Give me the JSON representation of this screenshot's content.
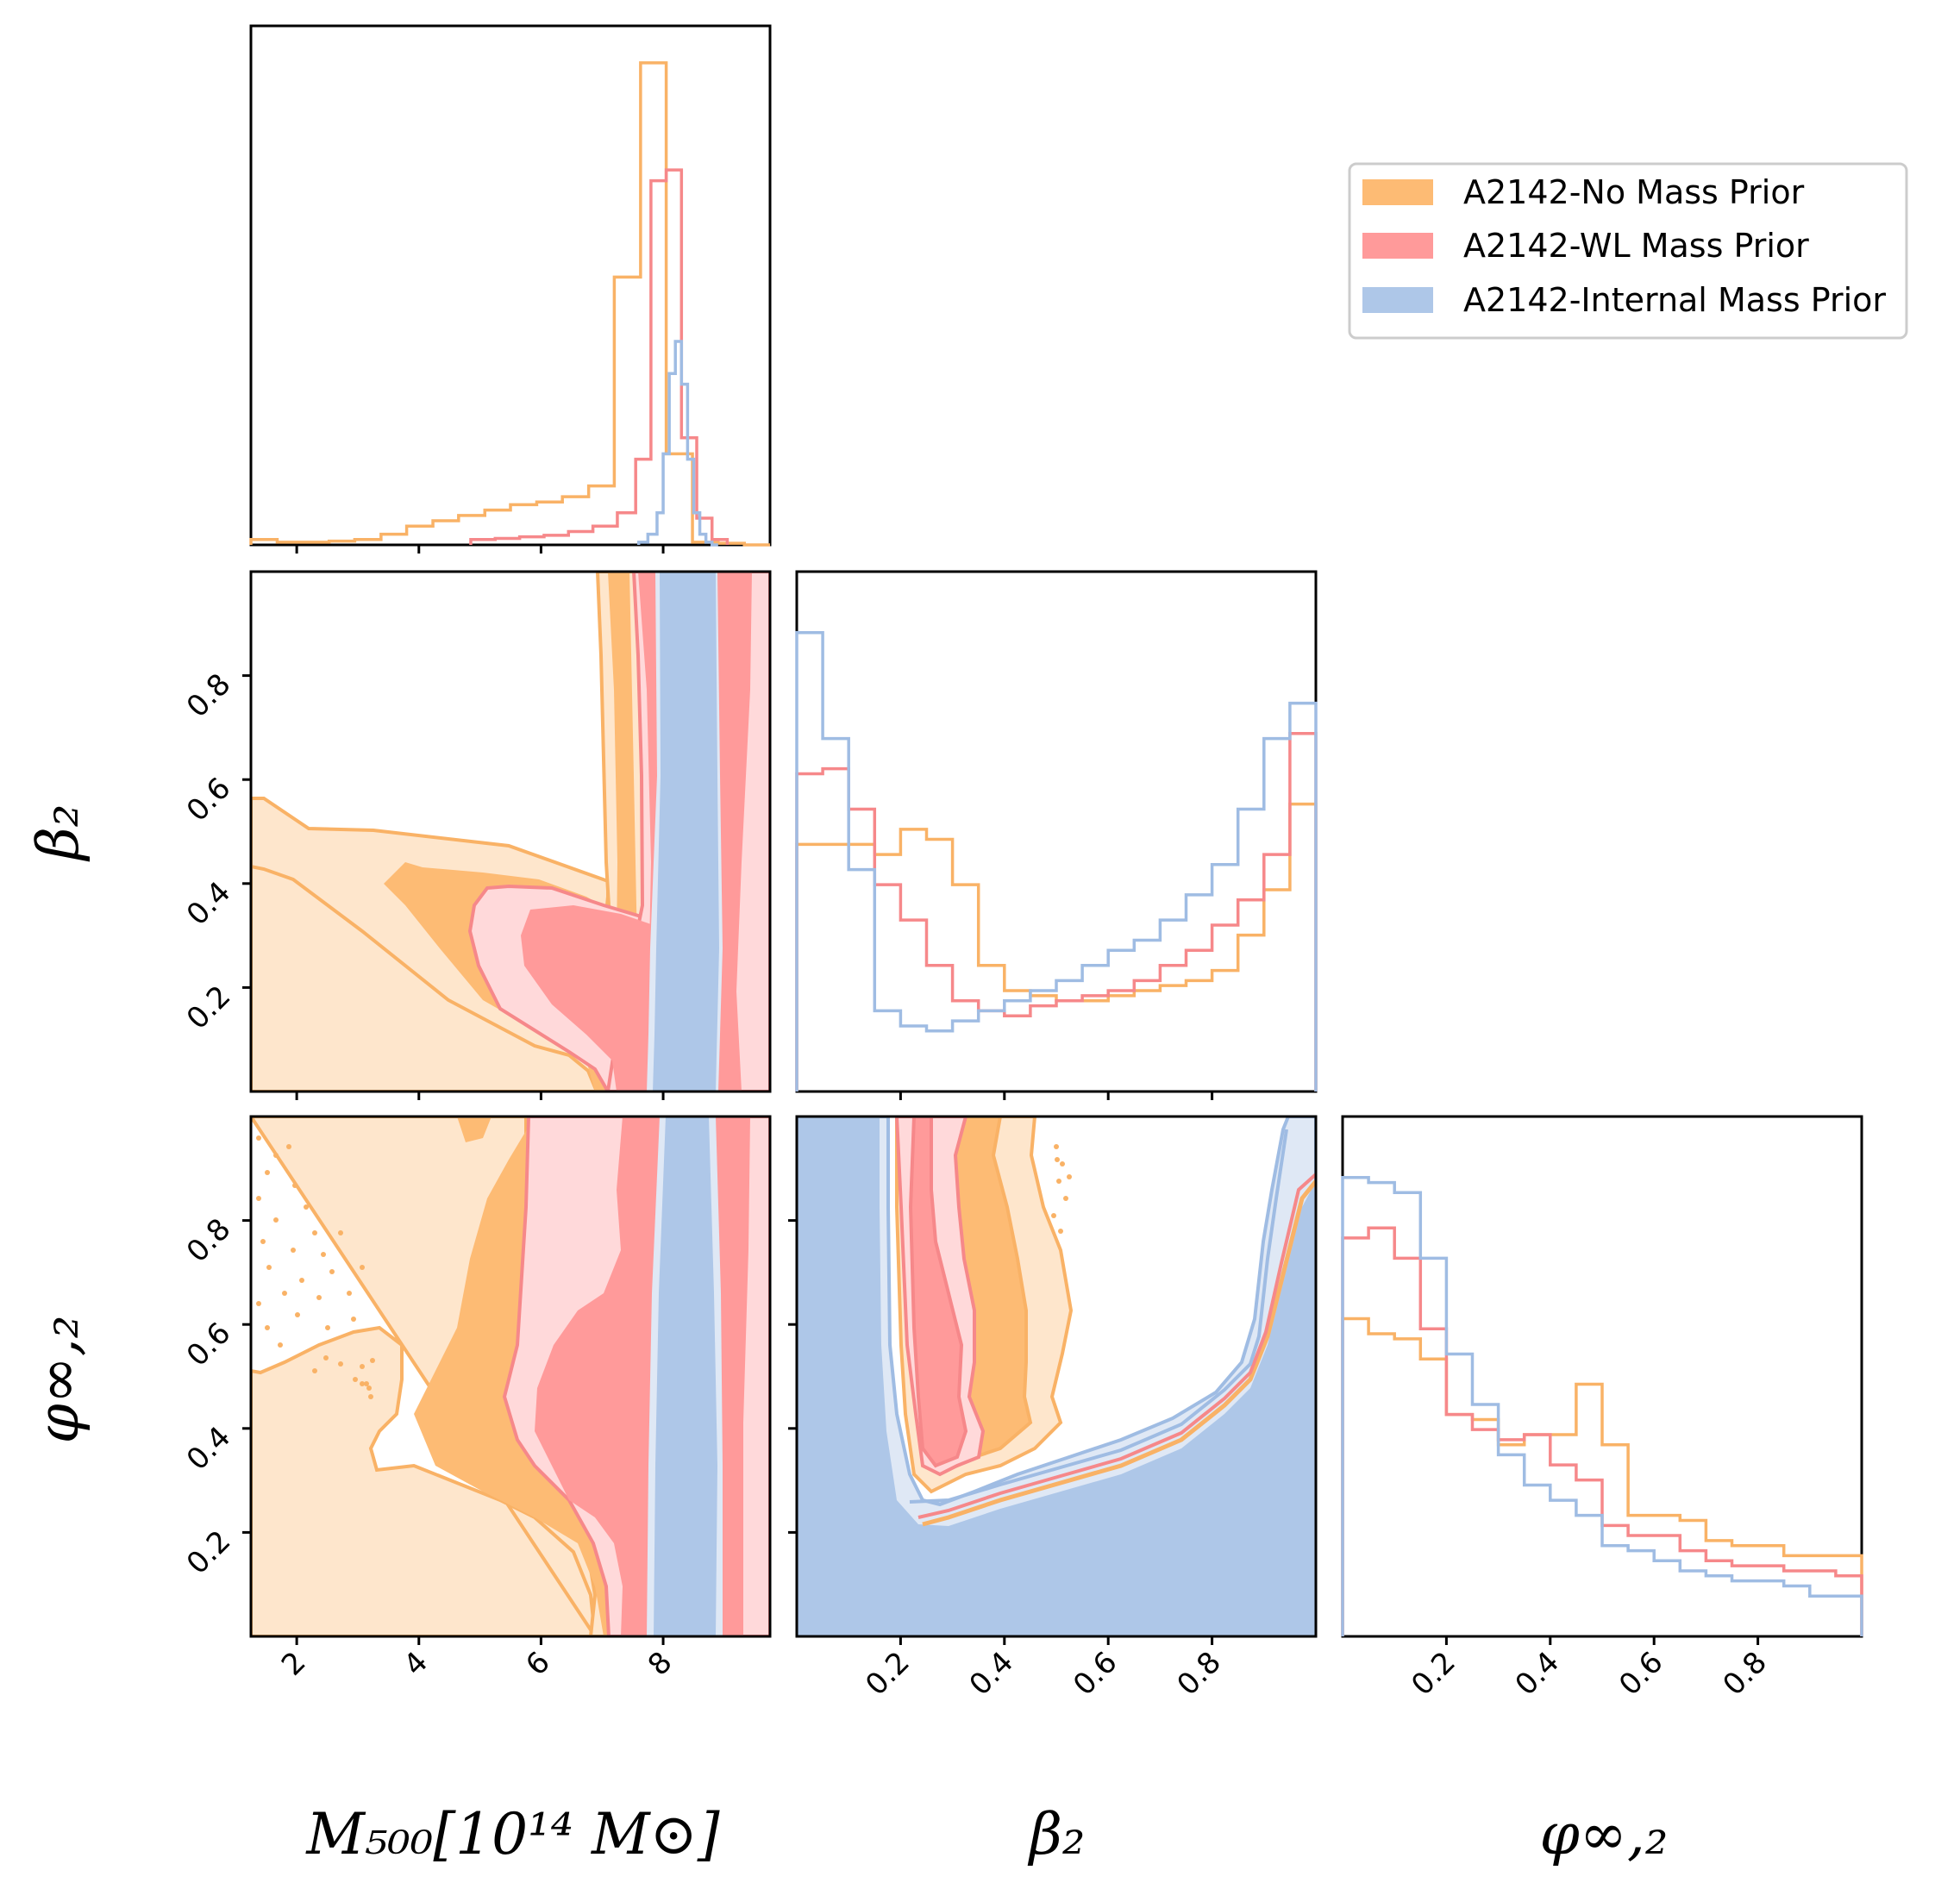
{
  "colors": {
    "no_mass": "#fdbb74",
    "no_mass_light": "#fee6cc",
    "no_mass_line": "#f9b266",
    "wl_mass": "#ff9a9a",
    "wl_mass_light": "#ffd9da",
    "wl_mass_line": "#f6888a",
    "internal_mass": "#aec7e8",
    "internal_mass_light": "#dfe8f5",
    "internal_mass_line": "#9fbce3"
  },
  "axis_titles": {
    "m500": "M₅₀₀[10¹⁴ M⊙]",
    "beta2": "β₂",
    "phi2": "φ∞,₂"
  },
  "legend": [
    {
      "label": "A2142-No Mass Prior",
      "color": "#fdbb74"
    },
    {
      "label": "A2142-WL Mass Prior",
      "color": "#ff9a9a"
    },
    {
      "label": "A2142-Internal Mass Prior",
      "color": "#aec7e8"
    }
  ],
  "chart_data": {
    "type": "corner",
    "parameters": [
      "M500",
      "beta2",
      "phi_inf2"
    ],
    "ranges": {
      "M500": [
        1.25,
        9.75
      ],
      "beta2": [
        0.0,
        1.0
      ],
      "phi_inf2": [
        0.0,
        1.0
      ]
    },
    "ticks": {
      "M500": [
        2,
        4,
        6,
        8
      ],
      "beta2": [
        0.2,
        0.4,
        0.6,
        0.8
      ],
      "phi_inf2": [
        0.2,
        0.4,
        0.6,
        0.8
      ]
    },
    "tick_labels": {
      "M500": [
        "2",
        "4",
        "6",
        "8"
      ],
      "beta2": [
        "0.2",
        "0.4",
        "0.6",
        "0.8"
      ],
      "phi_inf2": [
        "0.2",
        "0.4",
        "0.6",
        "0.8"
      ]
    },
    "hist_M500": {
      "series": [
        {
          "name": "A2142-No Mass Prior",
          "edges": [
            1.25,
            1.68,
            2.1,
            2.53,
            2.95,
            3.38,
            3.8,
            4.23,
            4.65,
            5.08,
            5.5,
            5.93,
            6.35,
            6.78,
            7.2,
            7.63,
            8.05,
            8.48,
            8.9,
            9.33,
            9.75
          ],
          "values": [
            0.01,
            0.005,
            0.005,
            0.007,
            0.01,
            0.02,
            0.035,
            0.045,
            0.055,
            0.065,
            0.075,
            0.08,
            0.09,
            0.11,
            0.5,
            0.9,
            0.17,
            0.005,
            0.003,
            0.0
          ]
        },
        {
          "name": "A2142-WL Mass Prior",
          "edges": [
            4.85,
            5.25,
            5.65,
            6.05,
            6.45,
            6.85,
            7.25,
            7.55,
            7.8,
            8.05,
            8.3,
            8.55,
            8.8,
            9.05
          ],
          "values": [
            0.01,
            0.012,
            0.015,
            0.018,
            0.025,
            0.035,
            0.06,
            0.16,
            0.68,
            0.7,
            0.2,
            0.05,
            0.01
          ]
        },
        {
          "name": "A2142-Internal Mass Prior",
          "edges": [
            7.6,
            7.75,
            7.9,
            8.0,
            8.1,
            8.2,
            8.3,
            8.4,
            8.5,
            8.6,
            8.7,
            8.8,
            8.9
          ],
          "values": [
            0.005,
            0.02,
            0.06,
            0.17,
            0.32,
            0.38,
            0.3,
            0.16,
            0.06,
            0.02,
            0.005,
            0.0
          ]
        }
      ]
    },
    "hist_beta2": {
      "edges": [
        0.0,
        0.05,
        0.1,
        0.15,
        0.2,
        0.25,
        0.3,
        0.35,
        0.4,
        0.45,
        0.5,
        0.55,
        0.6,
        0.65,
        0.7,
        0.75,
        0.8,
        0.85,
        0.9,
        0.95,
        1.0
      ],
      "series": [
        {
          "name": "A2142-No Mass Prior",
          "values": [
            0.49,
            0.49,
            0.49,
            0.47,
            0.52,
            0.5,
            0.41,
            0.25,
            0.2,
            0.19,
            0.18,
            0.18,
            0.19,
            0.2,
            0.21,
            0.22,
            0.24,
            0.31,
            0.4,
            0.57
          ]
        },
        {
          "name": "A2142-WL Mass Prior",
          "values": [
            0.63,
            0.64,
            0.56,
            0.41,
            0.34,
            0.25,
            0.18,
            0.16,
            0.15,
            0.17,
            0.18,
            0.19,
            0.2,
            0.22,
            0.25,
            0.28,
            0.33,
            0.38,
            0.47,
            0.71
          ]
        },
        {
          "name": "A2142-Internal Mass Prior",
          "values": [
            0.91,
            0.7,
            0.44,
            0.16,
            0.13,
            0.12,
            0.14,
            0.16,
            0.18,
            0.2,
            0.22,
            0.25,
            0.28,
            0.3,
            0.34,
            0.39,
            0.45,
            0.56,
            0.7,
            0.77
          ]
        }
      ]
    },
    "hist_phi2": {
      "edges": [
        0.0,
        0.05,
        0.1,
        0.15,
        0.2,
        0.25,
        0.3,
        0.35,
        0.4,
        0.45,
        0.5,
        0.55,
        0.6,
        0.65,
        0.7,
        0.75,
        0.8,
        0.85,
        0.9,
        0.95,
        1.0
      ],
      "series": [
        {
          "name": "A2142-No Mass Prior",
          "values": [
            0.63,
            0.6,
            0.59,
            0.55,
            0.44,
            0.43,
            0.38,
            0.4,
            0.4,
            0.5,
            0.38,
            0.24,
            0.24,
            0.23,
            0.19,
            0.18,
            0.18,
            0.16,
            0.16,
            0.16
          ]
        },
        {
          "name": "A2142-WL Mass Prior",
          "values": [
            0.79,
            0.81,
            0.75,
            0.61,
            0.44,
            0.41,
            0.39,
            0.4,
            0.34,
            0.31,
            0.22,
            0.2,
            0.2,
            0.17,
            0.15,
            0.14,
            0.14,
            0.13,
            0.13,
            0.12
          ]
        },
        {
          "name": "A2142-Internal Mass Prior",
          "values": [
            0.91,
            0.9,
            0.88,
            0.75,
            0.56,
            0.46,
            0.36,
            0.3,
            0.27,
            0.24,
            0.18,
            0.17,
            0.15,
            0.13,
            0.12,
            0.11,
            0.11,
            0.1,
            0.08,
            0.08
          ]
        }
      ]
    }
  }
}
